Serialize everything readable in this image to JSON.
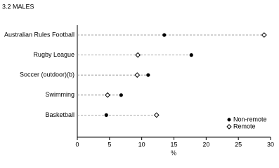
{
  "chart_data": {
    "type": "dot",
    "title": "3.2 MALES",
    "categories": [
      "Australian Rules Football",
      "Rugby League",
      "Soccer (outdoor)(b)",
      "Swimming",
      "Basketball"
    ],
    "series": [
      {
        "name": "Non-remote",
        "color": "#000000",
        "marker": "filled",
        "values": [
          13.5,
          17.7,
          11.0,
          6.8,
          4.5
        ]
      },
      {
        "name": "Remote",
        "color": "#000000",
        "marker": "open",
        "values": [
          29.0,
          9.4,
          9.3,
          4.7,
          12.3
        ]
      }
    ],
    "xlabel": "%",
    "xlim": [
      0,
      30
    ],
    "xticks": [
      0,
      5,
      10,
      15,
      20,
      25,
      30
    ],
    "legend": "lower right"
  }
}
